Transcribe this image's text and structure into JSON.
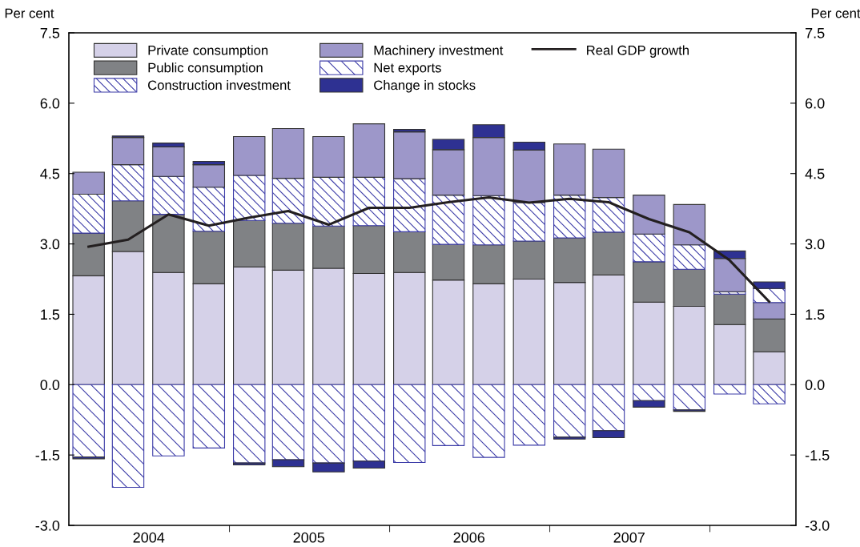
{
  "chart_data": {
    "type": "bar",
    "stacked": true,
    "ylabel": "Per cent",
    "y2label": "Per cent",
    "x": [
      "2004-02-15",
      "2004-05-15",
      "2004-08-15",
      "2004-11-15",
      "2005-02-15",
      "2005-05-15",
      "2005-08-15",
      "2005-11-15",
      "2006-02-15",
      "2006-05-15",
      "2006-08-15",
      "2006-11-15",
      "2007-02-15",
      "2007-05-15",
      "2007-08-15",
      "2007-11-15",
      "2008-02-15",
      "2008-05-15"
    ],
    "xlim": [
      "2004-01-01",
      "2008-07-15"
    ],
    "xticks": [
      {
        "value": "2004-07-01",
        "label": "2004"
      },
      {
        "value": "2005-07-01",
        "label": "2005"
      },
      {
        "value": "2006-07-01",
        "label": "2006"
      },
      {
        "value": "2007-07-01",
        "label": "2007"
      },
      {
        "value": "2005-01-01",
        "label": null
      },
      {
        "value": "2006-01-01",
        "label": null
      },
      {
        "value": "2007-01-01",
        "label": null
      },
      {
        "value": "2008-01-01",
        "label": null
      }
    ],
    "ylim": [
      -3,
      7.5
    ],
    "yticks": [
      {
        "value": -3,
        "label": "-3.0"
      },
      -1.5,
      {
        "value": 0,
        "label": "0.0"
      },
      1.5,
      {
        "value": 3,
        "label": "3.0"
      },
      4.5,
      {
        "value": 6,
        "label": "6.0"
      },
      7.5
    ],
    "y2lim": [
      -3,
      7.5
    ],
    "y2ticks": [
      {
        "value": -3,
        "label": "-3.0"
      },
      -1.5,
      {
        "value": 0,
        "label": "0.0"
      },
      1.5,
      {
        "value": 3,
        "label": "3.0"
      },
      4.5,
      {
        "value": 6,
        "label": "6.0"
      },
      7.5
    ],
    "legend": "top left",
    "grid": false,
    "series": [
      {
        "name": "Private consumption",
        "color": "#d5d1e8",
        "values": [
          2.32,
          2.84,
          2.39,
          2.15,
          2.51,
          2.44,
          2.48,
          2.37,
          2.39,
          2.23,
          2.15,
          2.25,
          2.18,
          2.34,
          1.76,
          1.67,
          1.28,
          0.7
        ]
      },
      {
        "name": "Public consumption",
        "color": "#808285",
        "values": [
          0.91,
          1.08,
          1.24,
          1.12,
          0.99,
          1.0,
          0.9,
          1.02,
          0.87,
          0.76,
          0.83,
          0.81,
          0.95,
          0.91,
          0.86,
          0.79,
          0.65,
          0.7
        ]
      },
      {
        "name": "Construction investment",
        "color": "#3c3ca8",
        "values": [
          0.83,
          0.77,
          0.81,
          0.94,
          0.96,
          0.96,
          1.04,
          1.03,
          1.13,
          1.05,
          1.05,
          0.82,
          0.91,
          0.74,
          0.59,
          0.52,
          0.05,
          -0.41
        ]
      },
      {
        "name": "Machinery investment",
        "color": "#9d97c9",
        "values": [
          0.47,
          0.58,
          0.63,
          0.48,
          0.83,
          1.06,
          0.87,
          1.14,
          1.0,
          0.97,
          1.24,
          1.12,
          1.09,
          1.03,
          0.83,
          0.86,
          0.71,
          0.35
        ]
      },
      {
        "name": "Net exports",
        "color": "#3c3ca8",
        "values": [
          -1.54,
          -2.19,
          -1.52,
          -1.35,
          -1.67,
          -1.6,
          -1.67,
          -1.63,
          -1.66,
          -1.3,
          -1.55,
          -1.29,
          -1.12,
          -0.98,
          -0.34,
          -0.54,
          -0.2,
          0.3
        ]
      },
      {
        "name": "Change in stocks",
        "color": "#2e3192",
        "values": [
          -0.04,
          0.03,
          0.08,
          0.07,
          -0.04,
          -0.15,
          -0.19,
          -0.15,
          0.05,
          0.22,
          0.27,
          0.17,
          -0.04,
          -0.15,
          -0.14,
          -0.03,
          0.16,
          0.14
        ]
      },
      {
        "name": "Real GDP growth",
        "type": "line",
        "color": "#231f20",
        "values": [
          2.94,
          3.09,
          3.63,
          3.39,
          3.56,
          3.7,
          3.41,
          3.77,
          3.77,
          3.89,
          3.99,
          3.88,
          3.96,
          3.89,
          3.53,
          3.25,
          2.65,
          1.77
        ]
      }
    ]
  }
}
